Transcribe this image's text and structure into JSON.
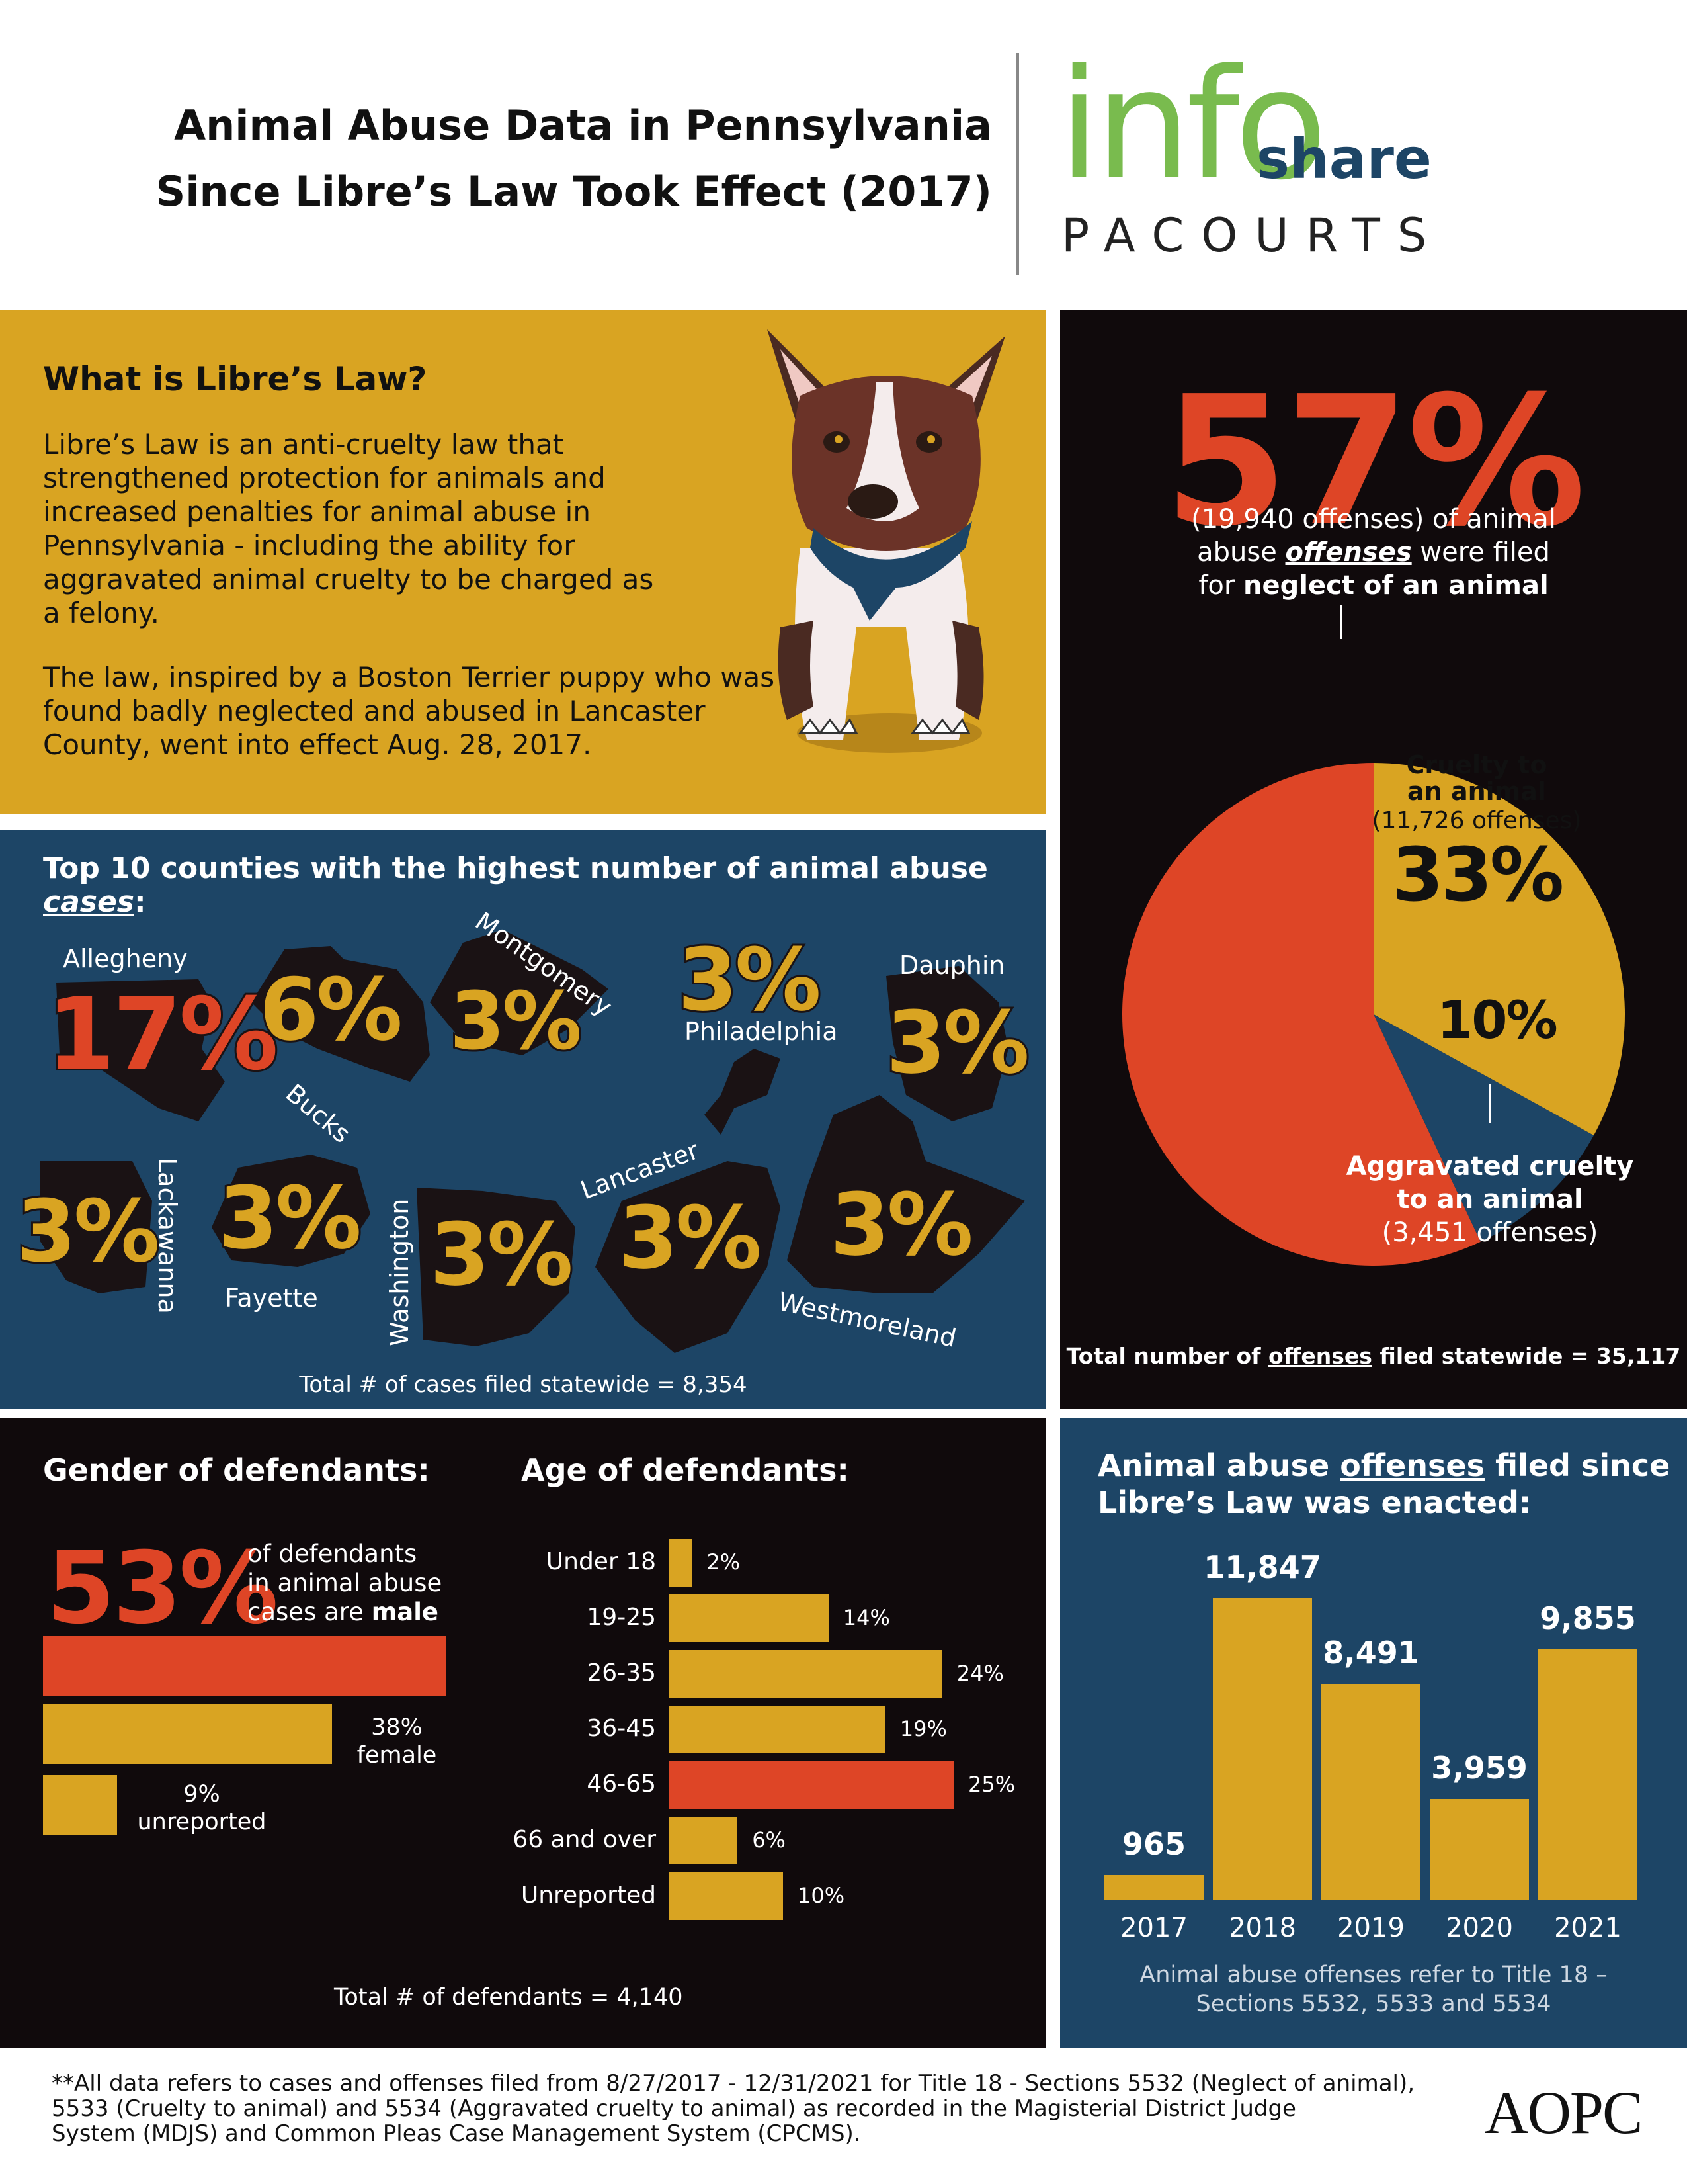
{
  "header": {
    "title_line1": "Animal Abuse Data in Pennsylvania",
    "title_line2": "Since Libre’s Law Took Effect (2017)",
    "logo_info": "info",
    "logo_share": "share",
    "logo_pacourts": "PACOURTS"
  },
  "libre": {
    "heading": "What is Libre’s Law?",
    "para1": "Libre’s Law is an anti-cruelty law that strengthened protection for animals and increased penalties for animal abuse in Pennsylvania - including the ability for aggravated animal cruelty to be charged as a felony.",
    "para2": "The law, inspired by a Boston Terrier puppy who was found badly neglected and abused in Lancaster County, went into effect Aug. 28, 2017."
  },
  "counties": {
    "heading_pre": "Top 10 counties with the highest number of animal abuse ",
    "heading_em": "cases",
    "heading_post": ":",
    "items": [
      {
        "name": "Allegheny",
        "pct": "17%"
      },
      {
        "name": "Bucks",
        "pct": "6%"
      },
      {
        "name": "Montgomery",
        "pct": "3%"
      },
      {
        "name": "Philadelphia",
        "pct": "3%"
      },
      {
        "name": "Dauphin",
        "pct": "3%"
      },
      {
        "name": "Lackawanna",
        "pct": "3%"
      },
      {
        "name": "Fayette",
        "pct": "3%"
      },
      {
        "name": "Washington",
        "pct": "3%"
      },
      {
        "name": "Lancaster",
        "pct": "3%"
      },
      {
        "name": "Westmoreland",
        "pct": "3%"
      }
    ],
    "total": "Total # of cases filed statewide = 8,354"
  },
  "offenses_pie": {
    "big_pct": "57%",
    "desc_line1": "(19,940 offenses) of animal",
    "desc_line2_pre": "abuse ",
    "desc_line2_em": "offenses",
    "desc_line2_post": " were filed",
    "desc_line3_pre": "for ",
    "desc_line3_bold": "neglect of an animal",
    "cruelty_label1": "Cruelty to",
    "cruelty_label2": "an animal",
    "cruelty_count": "(11,726 offenses)",
    "cruelty_pct": "33%",
    "aggravated_pct": "10%",
    "aggravated_label1": "Aggravated cruelty",
    "aggravated_label2": "to an animal",
    "aggravated_count": "(3,451 offenses)",
    "total_pre": "Total number of ",
    "total_em": "offenses",
    "total_post": " filed statewide = 35,117",
    "colors": {
      "neglect": "#de4526",
      "cruelty": "#d9a422",
      "aggravated": "#1d4566"
    }
  },
  "gender": {
    "heading": "Gender of defendants:",
    "big_pct": "53%",
    "male_line1": "of defendants",
    "male_line2": "in animal abuse",
    "male_line3_pre": "cases are ",
    "male_line3_bold": "male",
    "female_pct": "38%",
    "female_label": "female",
    "unreported_pct": "9%",
    "unreported_label": "unreported"
  },
  "age": {
    "heading": "Age of defendants:",
    "total": "Total # of defendants = 4,140"
  },
  "yearly": {
    "heading_pre": "Animal abuse ",
    "heading_em": "offenses",
    "heading_post": " filed since",
    "heading_line2": "Libre’s Law was enacted:",
    "footnote_line1": "Animal abuse offenses refer to Title 18 –",
    "footnote_line2": "Sections 5532, 5533 and 5534"
  },
  "footer": {
    "note_line1": "**All data refers to cases and offenses filed from 8/27/2017 - 12/31/2021 for Title 18 - Sections 5532 (Neglect of animal),",
    "note_line2": "5533 (Cruelty to animal) and 5534 (Aggravated cruelty to animal) as recorded in the Magisterial District Judge",
    "note_line3": "System (MDJS) and Common Pleas Case Management System (CPCMS).",
    "logo": "AOPC"
  },
  "chart_data": [
    {
      "type": "pie",
      "title": "",
      "labels": [
        "neglect of an animal",
        "Cruelty to an animal",
        "Aggravated cruelty to an animal"
      ],
      "values": [
        57,
        33,
        10
      ],
      "counts": [
        19940,
        11726,
        3451
      ]
    },
    {
      "type": "bar",
      "orientation": "horizontal",
      "title": "Gender of defendants:",
      "categories": [
        "male",
        "female",
        "unreported"
      ],
      "values": [
        53,
        38,
        9
      ]
    },
    {
      "type": "bar",
      "orientation": "horizontal",
      "title": "Age of defendants:",
      "categories": [
        "Under 18",
        "19-25",
        "26-35",
        "36-45",
        "46-65",
        "66 and over",
        "Unreported"
      ],
      "values": [
        2,
        14,
        24,
        19,
        25,
        6,
        10
      ],
      "labels": [
        "2%",
        "14%",
        "24%",
        "19%",
        "25%",
        "6%",
        "10%"
      ],
      "highlight": "46-65"
    },
    {
      "type": "bar",
      "title": "",
      "categories": [
        "2017",
        "2018",
        "2019",
        "2020",
        "2021"
      ],
      "values": [
        965,
        11847,
        8491,
        3959,
        9855
      ],
      "labels": [
        "965",
        "11,847",
        "8,491",
        "3,959",
        "9,855"
      ]
    }
  ]
}
